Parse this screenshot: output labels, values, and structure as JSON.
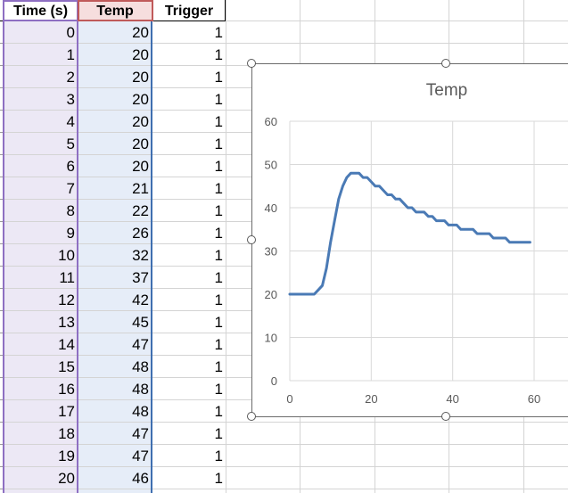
{
  "spreadsheet": {
    "headers": [
      "Time (s)",
      "Temp",
      "Trigger"
    ],
    "rows": [
      [
        "0",
        "20",
        "1"
      ],
      [
        "1",
        "20",
        "1"
      ],
      [
        "2",
        "20",
        "1"
      ],
      [
        "3",
        "20",
        "1"
      ],
      [
        "4",
        "20",
        "1"
      ],
      [
        "5",
        "20",
        "1"
      ],
      [
        "6",
        "20",
        "1"
      ],
      [
        "7",
        "21",
        "1"
      ],
      [
        "8",
        "22",
        "1"
      ],
      [
        "9",
        "26",
        "1"
      ],
      [
        "10",
        "32",
        "1"
      ],
      [
        "11",
        "37",
        "1"
      ],
      [
        "12",
        "42",
        "1"
      ],
      [
        "13",
        "45",
        "1"
      ],
      [
        "14",
        "47",
        "1"
      ],
      [
        "15",
        "48",
        "1"
      ],
      [
        "16",
        "48",
        "1"
      ],
      [
        "17",
        "48",
        "1"
      ],
      [
        "18",
        "47",
        "1"
      ],
      [
        "19",
        "47",
        "1"
      ],
      [
        "20",
        "46",
        "1"
      ]
    ]
  },
  "chart_data": {
    "type": "line",
    "title": "Temp",
    "xlabel": "",
    "ylabel": "",
    "xlim": [
      0,
      60
    ],
    "ylim": [
      0,
      60
    ],
    "x_ticks": [
      "0",
      "20",
      "40",
      "60"
    ],
    "y_ticks": [
      "0",
      "10",
      "20",
      "30",
      "40",
      "50",
      "60"
    ],
    "grid": true,
    "legend": "none",
    "series": [
      {
        "color": "#4a7ab5",
        "x": [
          0,
          1,
          2,
          3,
          4,
          5,
          6,
          7,
          8,
          9,
          10,
          11,
          12,
          13,
          14,
          15,
          16,
          17,
          18,
          19,
          20,
          21,
          22,
          23,
          24,
          25,
          26,
          27,
          28,
          29,
          30,
          31,
          32,
          33,
          34,
          35,
          36,
          37,
          38,
          39,
          40,
          41,
          42,
          43,
          44,
          45,
          46,
          47,
          48,
          49,
          50,
          51,
          52,
          53,
          54,
          55,
          56,
          57,
          58,
          59
        ],
        "y": [
          20,
          20,
          20,
          20,
          20,
          20,
          20,
          21,
          22,
          26,
          32,
          37,
          42,
          45,
          47,
          48,
          48,
          48,
          47,
          47,
          46,
          45,
          45,
          44,
          43,
          43,
          42,
          42,
          41,
          40,
          40,
          39,
          39,
          39,
          38,
          38,
          37,
          37,
          37,
          36,
          36,
          36,
          35,
          35,
          35,
          35,
          34,
          34,
          34,
          34,
          33,
          33,
          33,
          33,
          32,
          32,
          32,
          32,
          32,
          32
        ]
      }
    ]
  }
}
